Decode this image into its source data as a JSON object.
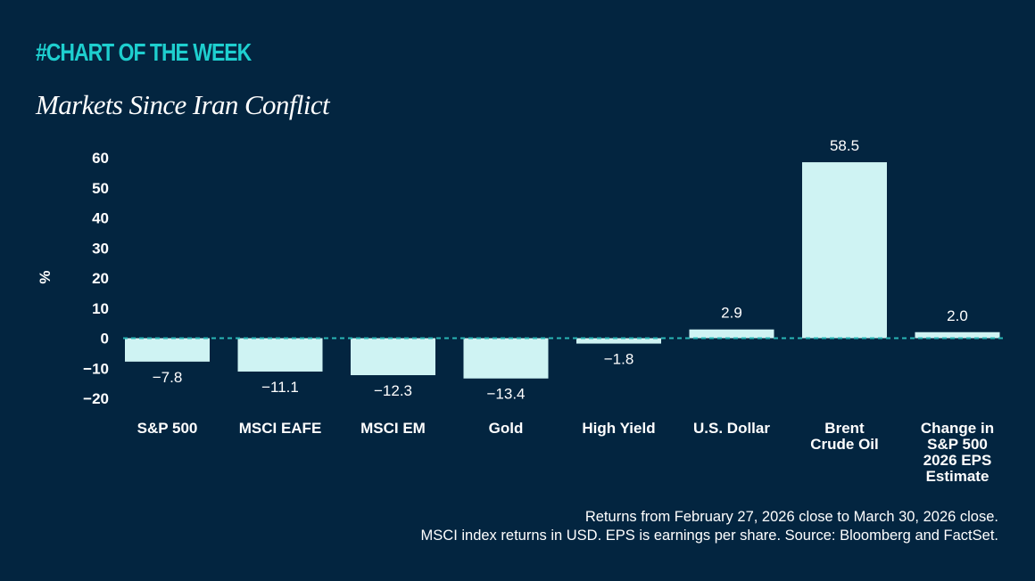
{
  "brand": "#CHART OF THE WEEK",
  "title": "Markets Since Iran Conflict",
  "chart_data": {
    "type": "bar",
    "title": "Markets Since Iran Conflict",
    "ylabel": "%",
    "xlabel": "",
    "ylim": [
      -20,
      60
    ],
    "yticks": [
      60,
      50,
      40,
      30,
      20,
      10,
      0,
      -10,
      -20
    ],
    "ytick_labels": [
      "60",
      "50",
      "40",
      "30",
      "20",
      "10",
      "0",
      "−10",
      "−20"
    ],
    "categories": [
      [
        "S&P 500"
      ],
      [
        "MSCI EAFE"
      ],
      [
        "MSCI EM"
      ],
      [
        "Gold"
      ],
      [
        "High Yield"
      ],
      [
        "U.S. Dollar"
      ],
      [
        "Brent",
        "Crude Oil"
      ],
      [
        "Change in",
        "S&P 500",
        "2026 EPS",
        "Estimate"
      ]
    ],
    "values": [
      -7.8,
      -11.1,
      -12.3,
      -13.4,
      -1.8,
      2.9,
      58.5,
      2.0
    ],
    "value_labels": [
      "−7.8",
      "−11.1",
      "−12.3",
      "−13.4",
      "−1.8",
      "2.9",
      "58.5",
      "2.0"
    ],
    "zero_line": "dashed"
  },
  "footnote": {
    "line1": "Returns from February 27, 2026 close to March 30, 2026 close.",
    "line2": "MSCI index returns in USD. EPS is earnings per share. Source: Bloomberg and FactSet."
  },
  "colors": {
    "background": "#032540",
    "bar": "#cff3f3",
    "brand": "#1ecfcf",
    "zero_line": "#2ab5b5",
    "text": "#ffffff"
  }
}
